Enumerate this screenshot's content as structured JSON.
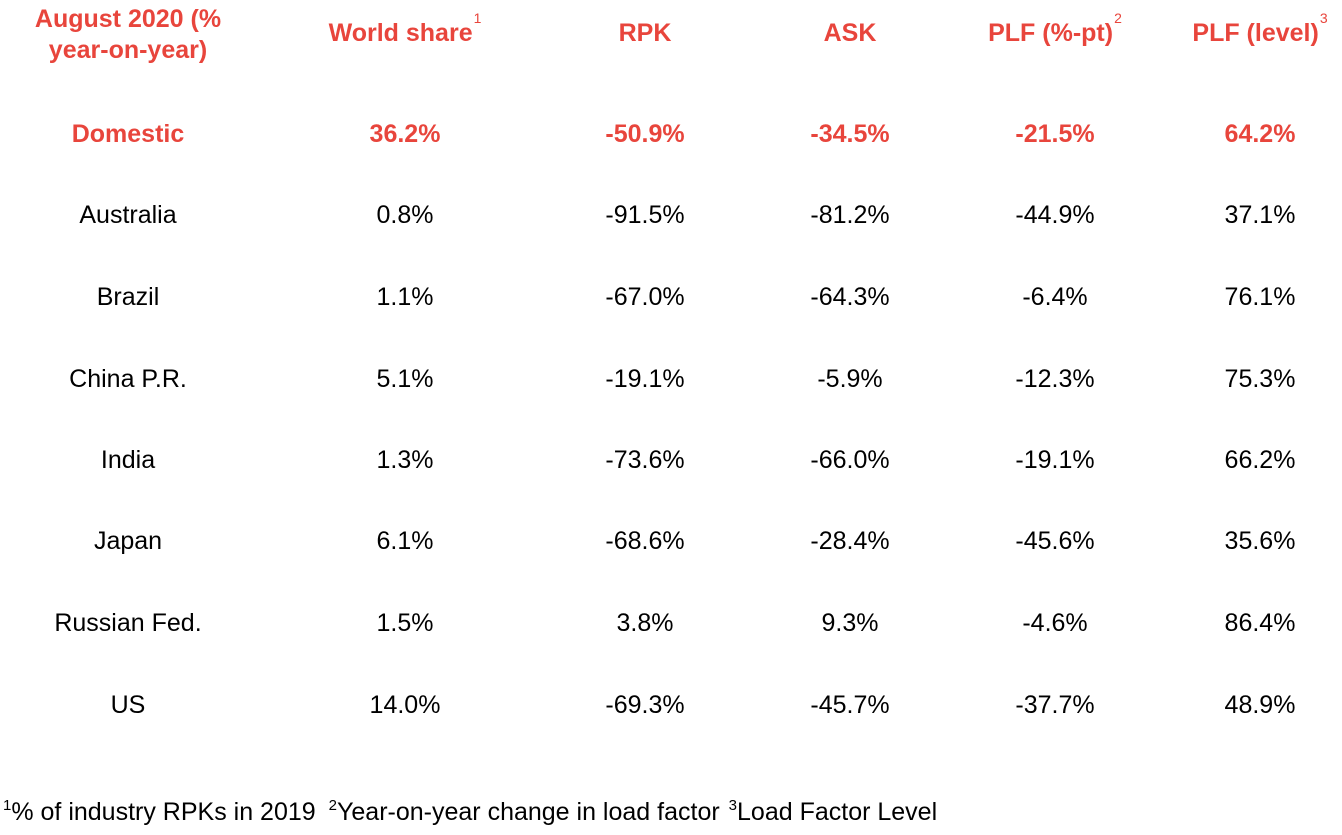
{
  "header": {
    "col0_line1": "August 2020 (%",
    "col0_line2": "year-on-year)",
    "world_share": "World share",
    "world_share_sup": "1",
    "rpk": "RPK",
    "ask": "ASK",
    "plf_pt": "PLF (%-pt)",
    "plf_pt_sup": "2",
    "plf_level": "PLF (level)",
    "plf_level_sup": "3"
  },
  "rows": [
    {
      "market": "Domestic",
      "world_share": "36.2%",
      "rpk": "-50.9%",
      "ask": "-34.5%",
      "plf_pt": "-21.5%",
      "plf_level": "64.2%"
    },
    {
      "market": "Australia",
      "world_share": "0.8%",
      "rpk": "-91.5%",
      "ask": "-81.2%",
      "plf_pt": "-44.9%",
      "plf_level": "37.1%"
    },
    {
      "market": "Brazil",
      "world_share": "1.1%",
      "rpk": "-67.0%",
      "ask": "-64.3%",
      "plf_pt": "-6.4%",
      "plf_level": "76.1%"
    },
    {
      "market": "China P.R.",
      "world_share": "5.1%",
      "rpk": "-19.1%",
      "ask": "-5.9%",
      "plf_pt": "-12.3%",
      "plf_level": "75.3%"
    },
    {
      "market": "India",
      "world_share": "1.3%",
      "rpk": "-73.6%",
      "ask": "-66.0%",
      "plf_pt": "-19.1%",
      "plf_level": "66.2%"
    },
    {
      "market": "Japan",
      "world_share": "6.1%",
      "rpk": "-68.6%",
      "ask": "-28.4%",
      "plf_pt": "-45.6%",
      "plf_level": "35.6%"
    },
    {
      "market": "Russian Fed.",
      "world_share": "1.5%",
      "rpk": "3.8%",
      "ask": "9.3%",
      "plf_pt": "-4.6%",
      "plf_level": "86.4%"
    },
    {
      "market": "US",
      "world_share": "14.0%",
      "rpk": "-69.3%",
      "ask": "-45.7%",
      "plf_pt": "-37.7%",
      "plf_level": "48.9%"
    }
  ],
  "footnote": {
    "sup1": "1",
    "text1": "% of industry RPKs in 2019",
    "sup2": "2",
    "text2": "Year-on-year change in load factor",
    "sup3": "3",
    "text3": "Load Factor Level"
  },
  "colors": {
    "accent": "#e8453c",
    "text": "#000000",
    "background": "#ffffff"
  }
}
